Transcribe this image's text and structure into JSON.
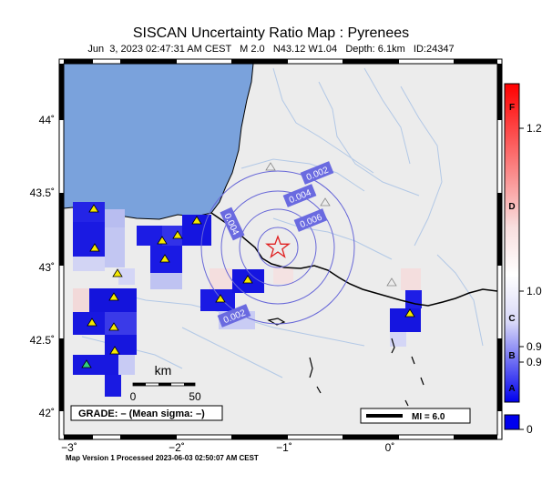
{
  "title": "SISCAN Uncertainty Ratio Map : Pyrenees",
  "subtitle": "Jun  3, 2023 02:47:31 AM CEST   M 2.0   N43.12 W1.04   Depth: 6.1km   ID:24347",
  "footer": "Map Version 1 Processed 2023-06-03 02:50:07 AM CEST",
  "lat_labels": [
    "44˚",
    "43.5˚",
    "43˚",
    "42.5˚",
    "42˚"
  ],
  "lon_labels": [
    "−3˚",
    "−2˚",
    "−1˚",
    "0˚"
  ],
  "contour_labels": [
    "0.002",
    "0.004",
    "0.006",
    "0.004",
    "0.002"
  ],
  "scale_bar": {
    "unit": "km",
    "start": "0",
    "end": "50"
  },
  "grade_box": "GRADE: – (Mean sigma: –)",
  "mi_legend": "MI = 6.0",
  "colorbar": {
    "letters": [
      "F",
      "D",
      "C",
      "B",
      "A"
    ],
    "values": [
      "1.2",
      "1.0",
      "0.9",
      "0.9",
      "0"
    ]
  },
  "colors": {
    "sea": "#7aa2dc",
    "land": "#ececec",
    "cell_strong": "#1515e0",
    "cell_light": "#b8bdf0",
    "cell_pink": "#f2d9d9",
    "epicenter": "#e02020",
    "contour": "#6868d8",
    "station": "#f5e800",
    "station_alt": "#30d080"
  }
}
